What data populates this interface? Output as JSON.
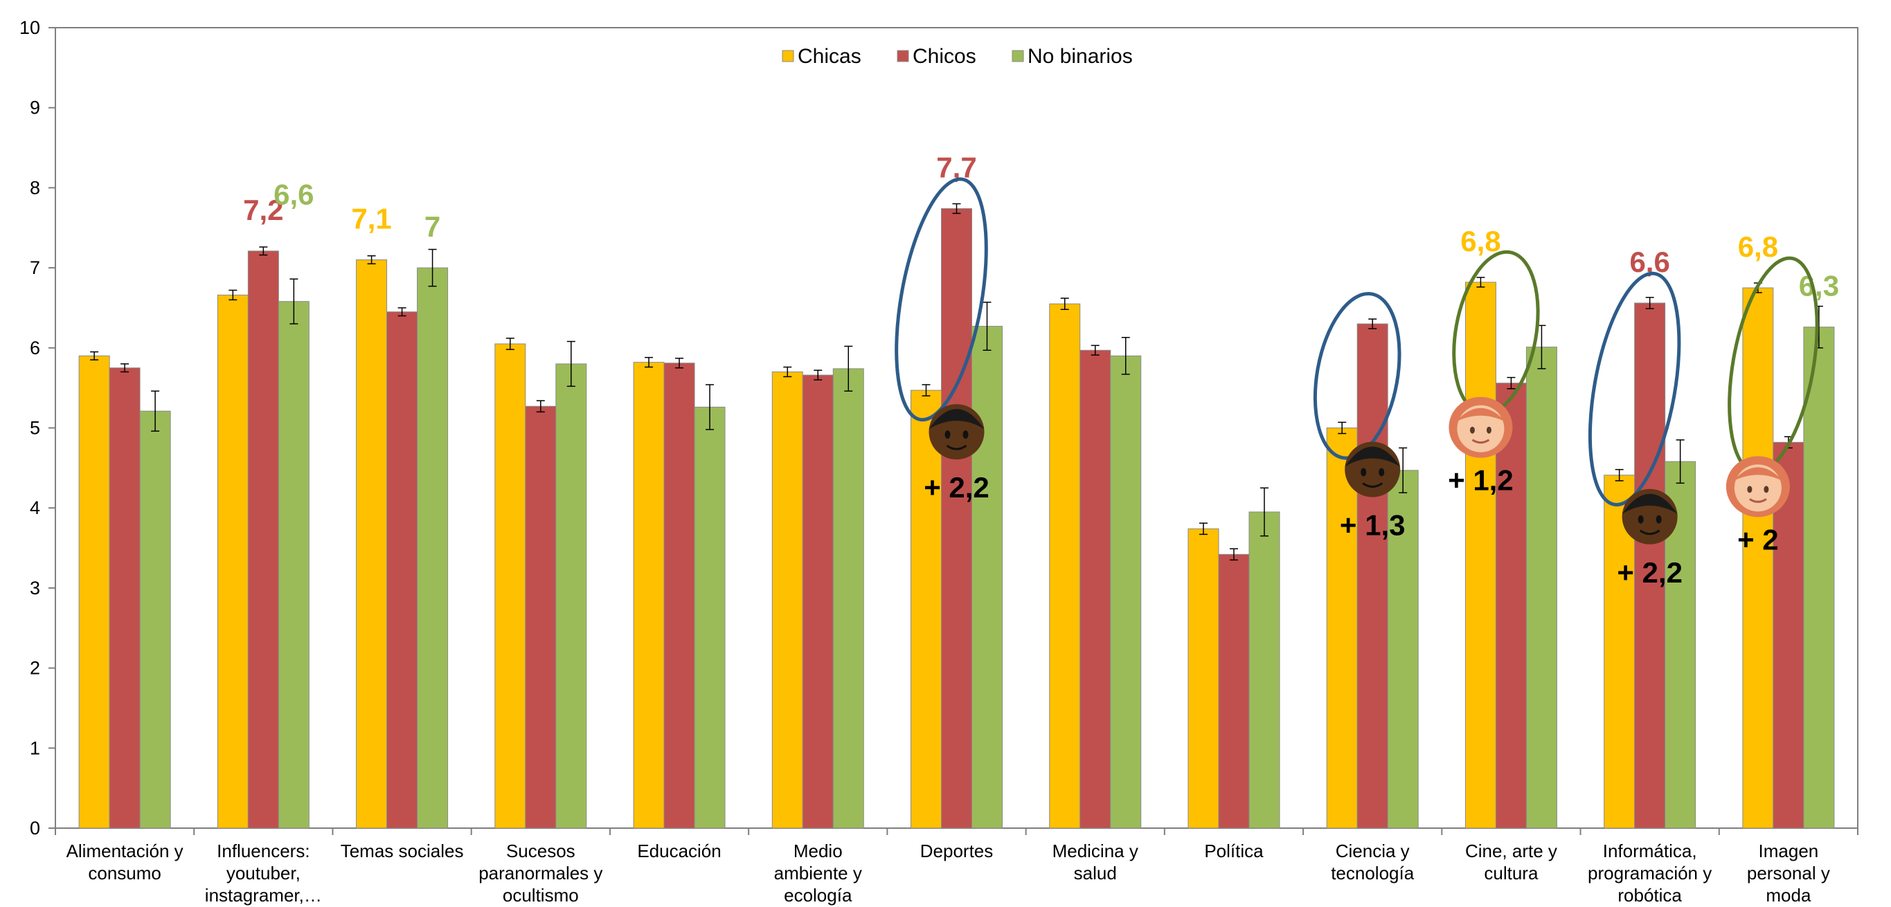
{
  "chart_data": {
    "type": "bar",
    "categories": [
      [
        "Alimentación y",
        "consumo"
      ],
      [
        "Influencers:",
        "youtuber,",
        "instagramer,…"
      ],
      [
        "Temas sociales"
      ],
      [
        "Sucesos",
        "paranormales y",
        "ocultismo"
      ],
      [
        "Educación"
      ],
      [
        "Medio",
        "ambiente y",
        "ecología"
      ],
      [
        "Deportes"
      ],
      [
        "Medicina y",
        "salud"
      ],
      [
        "Política"
      ],
      [
        "Ciencia y",
        "tecnología"
      ],
      [
        "Cine, arte y",
        "cultura"
      ],
      [
        "Informática,",
        "programación y",
        "robótica"
      ],
      [
        "Imagen",
        "personal y",
        "moda"
      ]
    ],
    "series": [
      {
        "name": "Chicas",
        "color": "#FFC000",
        "values": [
          5.9,
          6.66,
          7.1,
          6.05,
          5.82,
          5.7,
          5.47,
          6.55,
          3.74,
          5.0,
          6.82,
          4.41,
          6.75
        ],
        "errors": [
          0.05,
          0.06,
          0.05,
          0.07,
          0.06,
          0.06,
          0.07,
          0.07,
          0.07,
          0.07,
          0.06,
          0.07,
          0.06
        ]
      },
      {
        "name": "Chicos",
        "color": "#C0504D",
        "values": [
          5.75,
          7.21,
          6.45,
          5.27,
          5.81,
          5.66,
          7.74,
          5.97,
          3.42,
          6.3,
          5.56,
          6.56,
          4.82
        ],
        "errors": [
          0.05,
          0.05,
          0.05,
          0.07,
          0.06,
          0.06,
          0.06,
          0.06,
          0.07,
          0.06,
          0.07,
          0.07,
          0.07
        ]
      },
      {
        "name": "No binarios",
        "color": "#9BBB59",
        "values": [
          5.21,
          6.58,
          7.0,
          5.8,
          5.26,
          5.74,
          6.27,
          5.9,
          3.95,
          4.47,
          6.01,
          4.58,
          6.26
        ],
        "errors": [
          0.25,
          0.28,
          0.23,
          0.28,
          0.28,
          0.28,
          0.3,
          0.23,
          0.3,
          0.28,
          0.27,
          0.27,
          0.26
        ]
      }
    ],
    "ylim": [
      0,
      10
    ],
    "yticks": [
      0,
      1,
      2,
      3,
      4,
      5,
      6,
      7,
      8,
      9,
      10
    ],
    "legend_position": "top-center",
    "grid": false,
    "highlight_labels": [
      {
        "category": 1,
        "series": 1,
        "text": "7,2"
      },
      {
        "category": 1,
        "series": 2,
        "text": "6,6"
      },
      {
        "category": 2,
        "series": 0,
        "text": "7,1"
      },
      {
        "category": 2,
        "series": 2,
        "text": "7"
      },
      {
        "category": 6,
        "series": 1,
        "text": "7,7"
      },
      {
        "category": 10,
        "series": 0,
        "text": "6,8"
      },
      {
        "category": 11,
        "series": 1,
        "text": "6,6"
      },
      {
        "category": 12,
        "series": 0,
        "text": "6,8"
      },
      {
        "category": 12,
        "series": 2,
        "text": "6,3"
      }
    ],
    "ellipses": [
      {
        "category": 6,
        "color": "#2E5C8A"
      },
      {
        "category": 9,
        "color": "#2E5C8A"
      },
      {
        "category": 10,
        "color": "#5A7A2A"
      },
      {
        "category": 11,
        "color": "#2E5C8A"
      },
      {
        "category": 12,
        "color": "#5A7A2A"
      }
    ],
    "differences": [
      {
        "category": 6,
        "text": "+ 2,2",
        "icon": "boy-emoji-icon"
      },
      {
        "category": 9,
        "text": "+ 1,3",
        "icon": "boy-emoji-icon"
      },
      {
        "category": 10,
        "text": "+ 1,2",
        "icon": "girl-emoji-icon"
      },
      {
        "category": 11,
        "text": "+ 2,2",
        "icon": "boy-emoji-icon"
      },
      {
        "category": 12,
        "text": "+ 2",
        "icon": "girl-emoji-icon"
      }
    ]
  }
}
